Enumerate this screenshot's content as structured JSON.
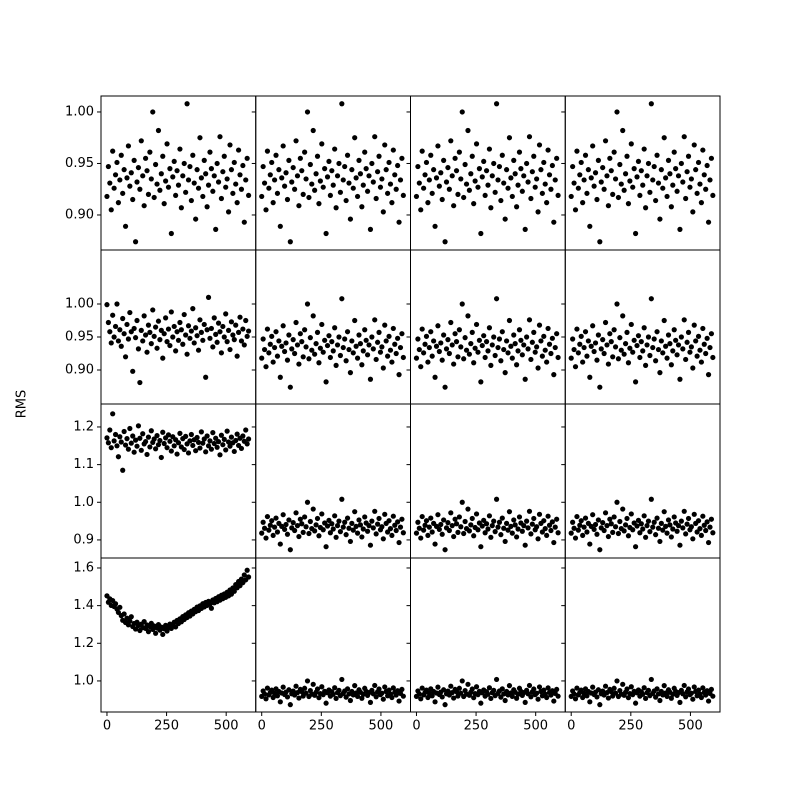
{
  "chart_data": {
    "type": "scatter",
    "ylabel": "RMS",
    "x": [
      0,
      6,
      12,
      18,
      24,
      30,
      36,
      42,
      48,
      54,
      60,
      66,
      72,
      78,
      84,
      90,
      96,
      102,
      108,
      114,
      120,
      126,
      132,
      138,
      144,
      150,
      156,
      162,
      168,
      174,
      180,
      186,
      192,
      198,
      204,
      210,
      216,
      222,
      228,
      234,
      240,
      246,
      252,
      258,
      264,
      270,
      276,
      282,
      288,
      294,
      300,
      306,
      312,
      318,
      324,
      330,
      336,
      342,
      348,
      354,
      360,
      366,
      372,
      378,
      384,
      390,
      396,
      402,
      408,
      414,
      420,
      426,
      432,
      438,
      444,
      450,
      456,
      462,
      468,
      474,
      480,
      486,
      492,
      498,
      504,
      510,
      516,
      522,
      528,
      534,
      540,
      546,
      552,
      558,
      564,
      570,
      576,
      582,
      588,
      594
    ],
    "xlim": [
      -25,
      624
    ],
    "xticks": [
      0,
      250,
      500
    ],
    "rows": [
      {
        "ylim": [
          0.866,
          1.0155
        ],
        "yticks": [
          {
            "value": 0.9,
            "label": "0.90"
          },
          0.95,
          {
            "value": 1,
            "label": "1.00"
          }
        ]
      },
      {
        "ylim": [
          0.8485,
          1.0818
        ],
        "yticks": [
          {
            "value": 0.9,
            "label": "0.90"
          },
          0.95,
          {
            "value": 1,
            "label": "1.00"
          }
        ]
      },
      {
        "ylim": [
          0.852,
          1.261
        ],
        "yticks": [
          0.9,
          {
            "value": 1,
            "label": "1.0"
          },
          1.1,
          1.2
        ]
      },
      {
        "ylim": [
          0.835,
          1.653
        ],
        "yticks": [
          {
            "value": 1,
            "label": "1.0"
          },
          1.2,
          1.4,
          1.6
        ]
      }
    ],
    "series": [
      {
        "color": "#000000",
        "values": [
          0.918,
          0.947,
          0.931,
          0.905,
          0.962,
          0.926,
          0.939,
          0.951,
          0.912,
          0.934,
          0.958,
          0.921,
          0.944,
          0.889,
          0.936,
          0.967,
          0.928,
          0.941,
          0.915,
          0.953,
          0.874,
          0.932,
          0.946,
          0.925,
          0.972,
          0.938,
          0.909,
          0.955,
          0.943,
          0.92,
          0.961,
          0.935,
          1.0,
          0.917,
          0.949,
          0.93,
          0.982,
          0.924,
          0.94,
          0.957,
          0.911,
          0.933,
          0.969,
          0.927,
          0.945,
          0.882,
          0.937,
          0.952,
          0.919,
          0.943,
          0.929,
          0.964,
          0.907,
          0.938,
          0.95,
          0.922,
          1.008,
          0.934,
          0.947,
          0.914,
          0.958,
          0.931,
          0.896,
          0.944,
          0.926,
          0.975,
          0.936,
          0.918,
          0.953,
          0.94,
          0.908,
          0.929,
          0.961,
          0.945,
          0.923,
          0.938,
          0.886,
          0.95,
          0.932,
          0.976,
          0.916,
          0.942,
          0.957,
          0.927,
          0.935,
          0.903,
          0.968,
          0.944,
          0.921,
          0.951,
          0.93,
          0.912,
          0.963,
          0.939,
          0.925,
          0.948,
          0.893,
          0.934,
          0.955,
          0.919
        ]
      },
      {
        "color": "#000000",
        "values": [
          0.999,
          0.972,
          0.958,
          0.941,
          0.983,
          0.95,
          0.966,
          1.0,
          0.944,
          0.961,
          0.936,
          0.978,
          0.955,
          0.92,
          0.969,
          0.947,
          0.987,
          0.958,
          0.898,
          0.963,
          0.949,
          0.975,
          0.932,
          0.881,
          0.96,
          0.944,
          0.982,
          0.953,
          0.927,
          0.968,
          0.957,
          0.94,
          0.991,
          0.951,
          0.965,
          0.933,
          0.974,
          0.946,
          0.96,
          0.918,
          0.955,
          0.979,
          0.943,
          0.962,
          0.937,
          0.988,
          0.95,
          0.966,
          0.929,
          0.958,
          0.945,
          0.972,
          0.961,
          0.939,
          0.984,
          0.953,
          0.924,
          0.967,
          0.948,
          0.959,
          0.993,
          0.941,
          0.964,
          0.952,
          0.93,
          0.976,
          0.957,
          0.945,
          0.969,
          0.889,
          0.961,
          1.01,
          0.948,
          0.963,
          0.935,
          0.979,
          0.954,
          0.942,
          0.971,
          0.958,
          0.926,
          0.966,
          0.95,
          0.985,
          0.943,
          0.96,
          0.931,
          0.973,
          0.953,
          0.946,
          0.968,
          0.921,
          0.957,
          0.98,
          0.944,
          0.962,
          0.938,
          0.975,
          0.951,
          0.959
        ]
      },
      {
        "color": "#000000",
        "values": [
          1.171,
          1.158,
          1.192,
          1.145,
          1.235,
          1.163,
          1.18,
          1.15,
          1.121,
          1.174,
          1.16,
          1.085,
          1.188,
          1.152,
          1.169,
          1.141,
          1.196,
          1.157,
          1.176,
          1.133,
          1.165,
          1.149,
          1.203,
          1.17,
          1.138,
          1.182,
          1.155,
          1.161,
          1.127,
          1.173,
          1.147,
          1.19,
          1.159,
          1.168,
          1.142,
          1.177,
          1.153,
          1.164,
          1.119,
          1.186,
          1.156,
          1.171,
          1.145,
          1.179,
          1.162,
          1.136,
          1.174,
          1.15,
          1.166,
          1.128,
          1.158,
          1.183,
          1.147,
          1.169,
          1.14,
          1.175,
          1.155,
          1.131,
          1.163,
          1.18,
          1.151,
          1.166,
          1.137,
          1.172,
          1.159,
          1.144,
          1.187,
          1.157,
          1.168,
          1.134,
          1.176,
          1.15,
          1.163,
          1.141,
          1.185,
          1.156,
          1.17,
          1.146,
          1.161,
          1.126,
          1.178,
          1.153,
          1.167,
          1.139,
          1.189,
          1.16,
          1.149,
          1.173,
          1.158,
          1.135,
          1.164,
          1.181,
          1.151,
          1.17,
          1.143,
          1.176,
          1.162,
          1.192,
          1.155,
          1.168
        ]
      },
      {
        "color": "#000000",
        "values": [
          1.452,
          1.418,
          1.436,
          1.401,
          1.427,
          1.395,
          1.41,
          1.382,
          1.364,
          1.391,
          1.347,
          1.322,
          1.356,
          1.31,
          1.333,
          1.298,
          1.318,
          1.341,
          1.289,
          1.305,
          1.276,
          1.312,
          1.294,
          1.268,
          1.301,
          1.283,
          1.315,
          1.279,
          1.297,
          1.262,
          1.288,
          1.306,
          1.274,
          1.292,
          1.253,
          1.281,
          1.299,
          1.27,
          1.286,
          1.247,
          1.277,
          1.295,
          1.265,
          1.284,
          1.302,
          1.279,
          1.296,
          1.312,
          1.287,
          1.321,
          1.305,
          1.33,
          1.314,
          1.342,
          1.326,
          1.351,
          1.337,
          1.362,
          1.345,
          1.371,
          1.356,
          1.38,
          1.368,
          1.392,
          1.374,
          1.399,
          1.385,
          1.41,
          1.393,
          1.417,
          1.401,
          1.423,
          1.408,
          1.386,
          1.43,
          1.415,
          1.438,
          1.421,
          1.447,
          1.429,
          1.455,
          1.437,
          1.462,
          1.444,
          1.471,
          1.452,
          1.483,
          1.461,
          1.494,
          1.476,
          1.512,
          1.495,
          1.528,
          1.506,
          1.541,
          1.522,
          1.563,
          1.537,
          1.588,
          1.552
        ]
      }
    ]
  }
}
